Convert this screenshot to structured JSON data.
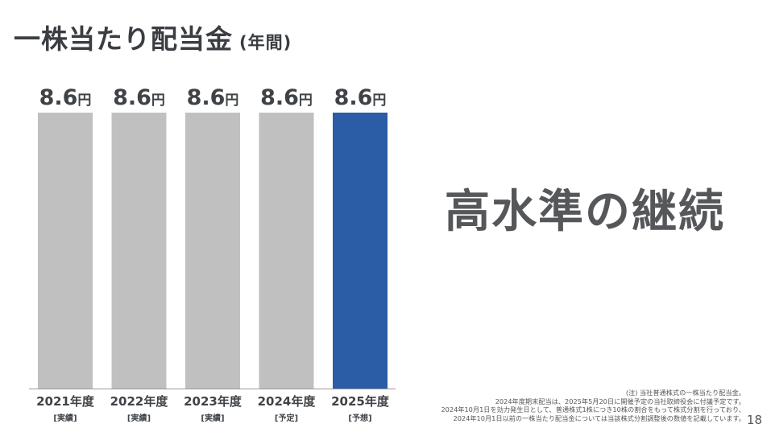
{
  "title": {
    "main": "一株当たり配当金",
    "sub": "(年間)"
  },
  "headline": "高水準の継続",
  "notes": [
    "(注) 当社普通株式の一株当たり配当金。",
    "2024年度期末配当は、2025年5月20日に開催予定の当社取締役会に付議予定です。",
    "2024年10月1日を効力発生日として、普通株式1株につき10株の割合をもって株式分割を行っており、",
    "2024年10月1日以前の一株当たり配当金については当該株式分割調整後の数値を記載しています。"
  ],
  "page_number": "18",
  "chart_data": {
    "type": "bar",
    "categories": [
      "2021年度",
      "2022年度",
      "2023年度",
      "2024年度",
      "2025年度"
    ],
    "category_notes": [
      "[実績]",
      "[実績]",
      "[実績]",
      "[予定]",
      "[予想]"
    ],
    "values": [
      8.6,
      8.6,
      8.6,
      8.6,
      8.6
    ],
    "value_labels": [
      "8.6",
      "8.6",
      "8.6",
      "8.6",
      "8.6"
    ],
    "unit": "円",
    "ylim": [
      0,
      8.6
    ],
    "grid": false,
    "colors": [
      "#c0c0c0",
      "#c0c0c0",
      "#c0c0c0",
      "#c0c0c0",
      "#2b5da7"
    ],
    "baseline_color": "#9a9a9a"
  }
}
